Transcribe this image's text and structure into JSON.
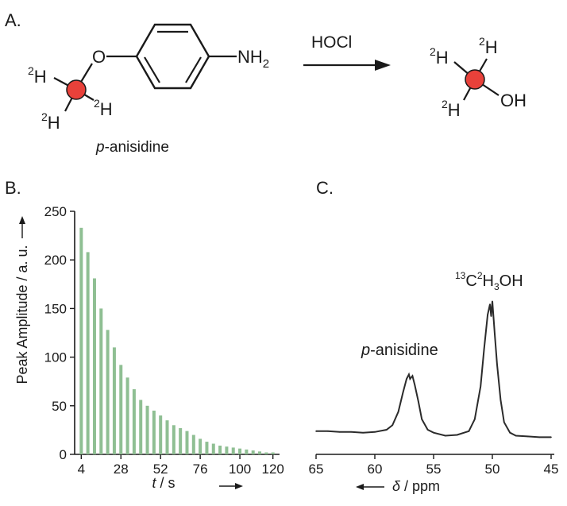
{
  "panel_labels": {
    "a": "A.",
    "b": "B.",
    "c": "C."
  },
  "scheme": {
    "reagent": "HOCl",
    "methoxy_oxygen": "O",
    "amine": "NH",
    "amine_subscript": "2",
    "deuterium_sup": "2",
    "deuterium": "H",
    "product_oh": "OH",
    "reactant_prefix": "p",
    "reactant_name": "-anisidine",
    "label_color": "#e8413a"
  },
  "chart_data": [
    {
      "type": "bar",
      "panel": "B.",
      "xlabel": "t / s",
      "ylabel": "Peak Amplitude / a. u.",
      "ylim": [
        0,
        250
      ],
      "yticks": [
        "0",
        "50",
        "100",
        "150",
        "200",
        "250"
      ],
      "xlim": [
        0,
        124
      ],
      "xticks": [
        "4",
        "28",
        "52",
        "76",
        "100",
        "120"
      ],
      "bar_color": "#8fbf93",
      "x": [
        4,
        8,
        12,
        16,
        20,
        24,
        28,
        32,
        36,
        40,
        44,
        48,
        52,
        56,
        60,
        64,
        68,
        72,
        76,
        80,
        84,
        88,
        92,
        96,
        100,
        104,
        108,
        112,
        116,
        120
      ],
      "values": [
        233,
        208,
        181,
        150,
        128,
        110,
        92,
        79,
        67,
        56,
        50,
        45,
        40,
        35,
        30,
        27,
        24,
        20,
        16,
        13,
        11,
        9,
        8,
        7,
        6,
        5,
        4,
        3,
        2,
        2
      ]
    },
    {
      "type": "line",
      "panel": "C.",
      "xlabel": "δ / ppm",
      "xlim": [
        65,
        45
      ],
      "xticks": [
        "65",
        "60",
        "55",
        "50",
        "45"
      ],
      "annotations": [
        {
          "prefix": "p",
          "text": "-anisidine"
        },
        {
          "mass": "13",
          "element": "C",
          "d_sup": "2",
          "h": "H",
          "sub": "3",
          "rest": "OH"
        }
      ],
      "x": [
        65,
        64,
        63,
        62,
        61,
        60,
        59,
        58.5,
        58,
        57.6,
        57.3,
        57.1,
        57.0,
        56.8,
        56.6,
        56.3,
        56.0,
        55.5,
        55,
        54,
        53,
        52,
        51.5,
        51.0,
        50.7,
        50.4,
        50.2,
        50.1,
        50.0,
        49.9,
        49.8,
        49.6,
        49.3,
        49.0,
        48.5,
        48,
        47,
        46,
        45
      ],
      "values": [
        0.07,
        0.07,
        0.065,
        0.065,
        0.06,
        0.065,
        0.08,
        0.11,
        0.2,
        0.33,
        0.42,
        0.45,
        0.42,
        0.44,
        0.38,
        0.27,
        0.15,
        0.08,
        0.06,
        0.04,
        0.045,
        0.07,
        0.15,
        0.37,
        0.62,
        0.85,
        0.92,
        0.84,
        0.94,
        0.83,
        0.72,
        0.52,
        0.28,
        0.13,
        0.06,
        0.04,
        0.035,
        0.03,
        0.03
      ]
    }
  ]
}
